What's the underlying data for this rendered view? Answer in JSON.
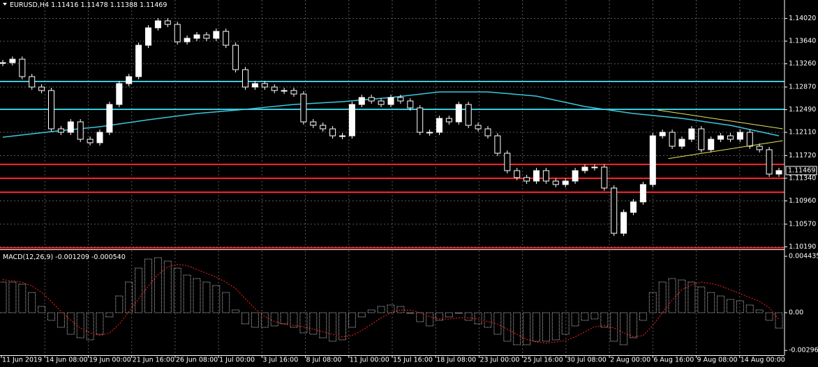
{
  "chart_data": {
    "type": "candlestick",
    "symbol": "EURUSD,H4",
    "ohlc": [
      1.11416,
      1.11478,
      1.11388,
      1.11469
    ],
    "up_color": "#ffffff",
    "down_color": "#000000",
    "ylim": [
      1.1016,
      1.1433
    ],
    "yticks": [
      {
        "value": 1.1402,
        "label": "1.14020"
      },
      {
        "value": 1.1364,
        "label": "1.13640"
      },
      {
        "value": 1.1326,
        "label": "1.13260"
      },
      {
        "value": 1.1287,
        "label": "1.12870"
      },
      {
        "value": 1.1249,
        "label": "1.12490"
      },
      {
        "value": 1.1211,
        "label": "1.12110"
      },
      {
        "value": 1.1172,
        "label": "1.11720"
      },
      {
        "value": 1.1134,
        "label": "1.11340"
      },
      {
        "value": 1.1096,
        "label": "1.10960"
      },
      {
        "value": 1.1057,
        "label": "1.10570"
      },
      {
        "value": 1.1019,
        "label": "1.10190"
      }
    ],
    "grid": true,
    "values": [
      1.13279,
      1.13337,
      1.13045,
      1.1287,
      1.12812,
      1.12169,
      1.12111,
      1.12286,
      1.11994,
      1.11936,
      1.12111,
      1.12578,
      1.12928,
      1.13045,
      1.13571,
      1.13863,
      1.1398,
      1.13921,
      1.13629,
      1.13688,
      1.13746,
      1.13688,
      1.13804,
      1.13571,
      1.13162,
      1.1287,
      1.12928,
      1.1287,
      1.12812,
      1.12812,
      1.12753,
      1.12286,
      1.12228,
      1.12169,
      1.12052,
      1.12052,
      1.12578,
      1.12695,
      1.12636,
      1.12578,
      1.12695,
      1.12636,
      1.1252,
      1.12111,
      1.12111,
      1.12344,
      1.12286,
      1.12578,
      1.12228,
      1.12169,
      1.12052,
      1.1176,
      1.11468,
      1.11352,
      1.11293,
      1.11468,
      1.11293,
      1.11235,
      1.11293,
      1.11468,
      1.11527,
      1.11527,
      1.11176,
      1.10417,
      1.10768,
      1.10943,
      1.11235,
      1.12052,
      1.12111,
      1.11877,
      1.11994,
      1.12169,
      1.11819,
      1.11994,
      1.12052,
      1.11994,
      1.12111,
      1.11877,
      1.11819,
      1.1141,
      1.11469
    ],
    "ma": {
      "color": "#3cc8dc",
      "x": [
        0,
        5,
        10,
        15,
        20,
        25,
        30,
        35,
        40,
        45,
        50,
        55,
        60,
        65,
        70,
        75,
        80
      ],
      "values": [
        1.12029,
        1.12122,
        1.12204,
        1.12321,
        1.12426,
        1.12496,
        1.12578,
        1.12625,
        1.12695,
        1.12788,
        1.12788,
        1.12718,
        1.12543,
        1.12426,
        1.12344,
        1.12228,
        1.12052
      ]
    },
    "levels": [
      {
        "value": 1.12963,
        "color": "#3cc8dc"
      },
      {
        "value": 1.12496,
        "color": "#3cc8dc"
      },
      {
        "value": 1.11573,
        "color": "#ff2020"
      },
      {
        "value": 1.1134,
        "color": "#ff2020"
      },
      {
        "value": 1.11106,
        "color": "#ff2020"
      },
      {
        "value": 1.10172,
        "color": "#ff2020"
      }
    ],
    "trendlines": {
      "color": "#e8e860",
      "lines": [
        {
          "x": [
            67.5,
            80.4
          ],
          "values": [
            1.12485,
            1.12169
          ]
        },
        {
          "x": [
            68.6,
            80.4
          ],
          "values": [
            1.1167,
            1.11971
          ]
        }
      ]
    },
    "time_labels": [
      "11 Jun 2019",
      "14 Jun 08:00",
      "19 Jun 00:00",
      "21 Jun 16:00",
      "26 Jun 08:00",
      "1 Jul 00:00",
      "3 Jul 16:00",
      "8 Jul 08:00",
      "11 Jul 00:00",
      "15 Jul 16:00",
      "18 Jul 08:00",
      "23 Jul 00:00",
      "25 Jul 16:00",
      "30 Jul 08:00",
      "2 Aug 00:00",
      "6 Aug 16:00",
      "9 Aug 08:00",
      "14 Aug 00:00"
    ],
    "macd": {
      "name": "MACD(12,26,9)",
      "last_macd": -0.001209,
      "last_signal": {
        "value": -0.00054,
        "label": "-0.000540"
      },
      "signal_color": "#ff2020",
      "ylim": [
        -0.00334,
        0.00482
      ],
      "yticks": [
        0.004435,
        {
          "value": 0,
          "label": "0.00"
        },
        -0.002968
      ],
      "values": [
        0.002411,
        0.002411,
        0.002247,
        0.001589,
        0.000493,
        -0.000603,
        -0.001151,
        -0.001699,
        -0.001973,
        -0.002137,
        -0.001699,
        -0.000329,
        0.001315,
        0.002411,
        0.003507,
        0.00422,
        0.004329,
        0.004055,
        0.003507,
        0.002959,
        0.002685,
        0.002411,
        0.002137,
        0.001589,
        0.000219,
        -0.000877,
        -0.001151,
        -0.001151,
        -0.001041,
        -0.000877,
        -0.001151,
        -0.001589,
        -0.001699,
        -0.001973,
        -0.002247,
        -0.002137,
        -0.001151,
        -0.000329,
        0.000219,
        0.000493,
        0.000603,
        0.000493,
        -5.5e-05,
        -0.000712,
        -0.001041,
        -0.000603,
        -0.000329,
        -5.5e-05,
        -0.000603,
        -0.000877,
        -0.001151,
        -0.001699,
        -0.002247,
        -0.002521,
        -0.002521,
        -0.002247,
        -0.002247,
        -0.002137,
        -0.001699,
        -0.001041,
        -0.000603,
        -0.000493,
        -0.001151,
        -0.002247,
        -0.002521,
        -0.001973,
        -0.000603,
        0.001589,
        0.002411,
        0.002685,
        0.002576,
        0.002411,
        0.002028,
        0.001589,
        0.001315,
        0.001041,
        0.000932,
        0.000603,
        0.000219,
        -0.000603,
        -0.001209
      ],
      "signal": [
        0.0026,
        0.0025,
        0.0024,
        0.0021,
        0.0016,
        0.0009,
        0.0001,
        -0.0006,
        -0.0012,
        -0.0016,
        -0.0018,
        -0.0016,
        -0.0009,
        0.0001,
        0.0011,
        0.0021,
        0.003,
        0.0036,
        0.0038,
        0.0037,
        0.0034,
        0.0031,
        0.0028,
        0.0024,
        0.0019,
        0.0011,
        0.0003,
        -0.0003,
        -0.0007,
        -0.0009,
        -0.001,
        -0.0011,
        -0.0013,
        -0.0015,
        -0.0017,
        -0.0019,
        -0.0018,
        -0.0014,
        -0.0009,
        -0.0004,
        0,
        0.0002,
        0.0002,
        0,
        -0.0003,
        -0.0005,
        -0.0005,
        -0.0004,
        -0.0004,
        -0.0005,
        -0.0007,
        -0.0009,
        -0.0013,
        -0.0017,
        -0.0021,
        -0.0023,
        -0.0024,
        -0.0023,
        -0.0022,
        -0.0019,
        -0.0015,
        -0.0011,
        -0.001,
        -0.0012,
        -0.0016,
        -0.0019,
        -0.0018,
        -0.001,
        0,
        0.001,
        0.0018,
        0.0022,
        0.0024,
        0.0023,
        0.0021,
        0.0018,
        0.0015,
        0.0012,
        0.0009,
        0.0004,
        -0.00054
      ]
    }
  }
}
